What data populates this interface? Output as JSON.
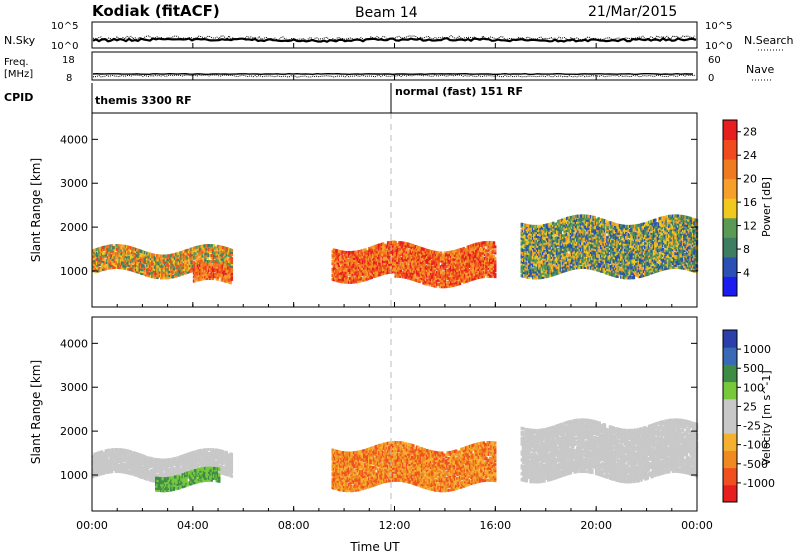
{
  "header": {
    "title": "Kodiak (fitACF)",
    "beam": "Beam 14",
    "date": "21/Mar/2015"
  },
  "panels": {
    "nsky": {
      "label": "N.Sky",
      "ticks": [
        "10^5",
        "10^0"
      ],
      "right_label": "N.Search",
      "right_ticks": [
        "10^5",
        "10^0"
      ]
    },
    "freq": {
      "label_line1": "Freq.",
      "label_line2": "[MHz]",
      "ticks": [
        "18",
        "8"
      ],
      "right_label": "Nave",
      "right_ticks": [
        "60",
        "0"
      ]
    },
    "cpid": {
      "label": "CPID",
      "modes": [
        "themis 3300 RF",
        "normal (fast) 151 RF"
      ]
    }
  },
  "colors": {
    "power": [
      "#1c1cf0",
      "#2a4fb5",
      "#3d7e63",
      "#5a9a55",
      "#f0c81e",
      "#f5a02a",
      "#f07a20",
      "#f04a1e",
      "#e61e1e"
    ],
    "velocity": [
      "#e61e1e",
      "#f05020",
      "#f08a20",
      "#f5b030",
      "#c8c8c8",
      "#c8c8c8",
      "#78c83c",
      "#3d8c46",
      "#3a6ab5",
      "#2a3faa"
    ]
  },
  "chart_data": [
    {
      "type": "heatmap",
      "title": "",
      "xlabel": "Time UT",
      "ylabel": "Slant Range [km]",
      "xticks": [
        "00:00",
        "04:00",
        "08:00",
        "12:00",
        "16:00",
        "20:00",
        "00:00"
      ],
      "xlim": [
        0,
        24
      ],
      "ylim": [
        180,
        4600
      ],
      "yticks": [
        1000,
        2000,
        3000,
        4000
      ],
      "colorbar": {
        "label": "Power [dB]",
        "ticks": [
          "4",
          "8",
          "12",
          "16",
          "20",
          "24",
          "28"
        ],
        "range": [
          0,
          30
        ]
      },
      "echo_regions": [
        {
          "t": [
            0.0,
            5.5
          ],
          "range": [
            1000,
            1500
          ],
          "level": "high"
        },
        {
          "t": [
            4.0,
            5.5
          ],
          "range": [
            750,
            1100
          ],
          "level": "very high"
        },
        {
          "t": [
            9.5,
            12.0
          ],
          "range": [
            900,
            1600
          ],
          "level": "very high"
        },
        {
          "t": [
            12.0,
            16.0
          ],
          "range": [
            800,
            1600
          ],
          "level": "very high"
        },
        {
          "t": [
            17.0,
            24.0
          ],
          "range": [
            1000,
            2200
          ],
          "level": "medium"
        }
      ]
    },
    {
      "type": "heatmap",
      "title": "",
      "xlabel": "Time UT",
      "ylabel": "Slant Range [km]",
      "xticks": [
        "00:00",
        "04:00",
        "08:00",
        "12:00",
        "16:00",
        "20:00",
        "00:00"
      ],
      "xlim": [
        0,
        24
      ],
      "ylim": [
        180,
        4600
      ],
      "yticks": [
        1000,
        2000,
        3000,
        4000
      ],
      "colorbar": {
        "label": "Velocity [m s^-1]",
        "ticks": [
          "1000",
          "500",
          "100",
          "25",
          "-25",
          "-100",
          "-500",
          "-1000"
        ]
      },
      "echo_regions": [
        {
          "t": [
            0.0,
            5.5
          ],
          "range": [
            1000,
            1500
          ],
          "velocity": "near zero"
        },
        {
          "t": [
            2.5,
            5.0
          ],
          "range": [
            800,
            1100
          ],
          "velocity": "positive"
        },
        {
          "t": [
            9.5,
            16.0
          ],
          "range": [
            800,
            1700
          ],
          "velocity": "negative"
        },
        {
          "t": [
            17.0,
            24.0
          ],
          "range": [
            1000,
            2200
          ],
          "velocity": "near zero"
        }
      ]
    }
  ]
}
